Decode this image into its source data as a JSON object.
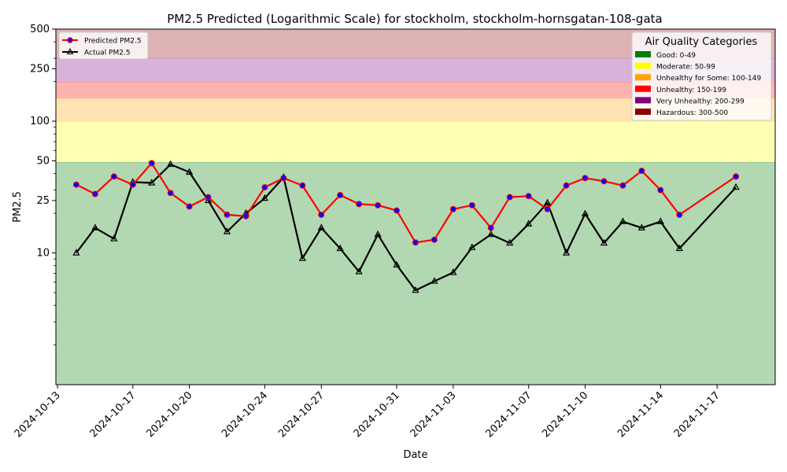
{
  "chart_data": {
    "type": "line",
    "title": "PM2.5 Predicted (Logarithmic Scale) for stockholm, stockholm-hornsgatan-108-gata",
    "xlabel": "Date",
    "ylabel": "PM2.5",
    "yscale": "log",
    "ylim": [
      1,
      500
    ],
    "xlim": [
      "2024-10-12T22:00",
      "2024-11-20T02:00"
    ],
    "x_ticks": [
      "2024-10-13",
      "2024-10-17",
      "2024-10-20",
      "2024-10-24",
      "2024-10-27",
      "2024-10-31",
      "2024-11-03",
      "2024-11-07",
      "2024-11-10",
      "2024-11-14",
      "2024-11-17"
    ],
    "y_ticks": [
      {
        "value": 10,
        "label": "10"
      },
      {
        "value": 25,
        "label": "25"
      },
      {
        "value": 50,
        "label": "50"
      },
      {
        "value": 100,
        "label": "100"
      },
      {
        "value": 250,
        "label": "250"
      },
      {
        "value": 500,
        "label": "500"
      }
    ],
    "y_minor_ticks": [
      2,
      3,
      4,
      5,
      6,
      7,
      8,
      9,
      20,
      30,
      40,
      60,
      70,
      80,
      90,
      200,
      300,
      400
    ],
    "categories_legend": {
      "title": "Air Quality Categories",
      "placement": "top-right",
      "items": [
        {
          "label": "Good: 0-49",
          "color": "#008000",
          "band": [
            1,
            49
          ],
          "band_color": "#b2d8b2"
        },
        {
          "label": "Moderate: 50-99",
          "color": "#ffff00",
          "band": [
            50,
            99
          ],
          "band_color": "#ffffb2"
        },
        {
          "label": "Unhealthy for Some: 100-149",
          "color": "#ffa500",
          "band": [
            100,
            149
          ],
          "band_color": "#ffe4b2"
        },
        {
          "label": "Unhealthy: 150-199",
          "color": "#ff0000",
          "band": [
            150,
            199
          ],
          "band_color": "#ffb2b2"
        },
        {
          "label": "Very Unhealthy: 200-299",
          "color": "#800080",
          "band": [
            200,
            299
          ],
          "band_color": "#d8b2d8"
        },
        {
          "label": "Hazardous: 300-500",
          "color": "#8b0000",
          "band": [
            300,
            500
          ],
          "band_color": "#dcb2b2"
        }
      ]
    },
    "series_legend_placement": "top-left",
    "series": [
      {
        "name": "Predicted PM2.5",
        "color": "#ff0000",
        "marker": "circle",
        "marker_color": "#0000ff",
        "points": [
          [
            "2024-10-14",
            33
          ],
          [
            "2024-10-15",
            28
          ],
          [
            "2024-10-16",
            38
          ],
          [
            "2024-10-17",
            33
          ],
          [
            "2024-10-18",
            48
          ],
          [
            "2024-10-19",
            28.5
          ],
          [
            "2024-10-20",
            22.5
          ],
          [
            "2024-10-21",
            26.5
          ],
          [
            "2024-10-22",
            19.5
          ],
          [
            "2024-10-23",
            19
          ],
          [
            "2024-10-24",
            31.5
          ],
          [
            "2024-10-25",
            37
          ],
          [
            "2024-10-26",
            32.5
          ],
          [
            "2024-10-27",
            19.5
          ],
          [
            "2024-10-28",
            27.5
          ],
          [
            "2024-10-29",
            23.5
          ],
          [
            "2024-10-30",
            23
          ],
          [
            "2024-10-31",
            21
          ],
          [
            "2024-11-01",
            12
          ],
          [
            "2024-11-02",
            12.6
          ],
          [
            "2024-11-03",
            21.5
          ],
          [
            "2024-11-04",
            23
          ],
          [
            "2024-11-05",
            15.5
          ],
          [
            "2024-11-06",
            26.5
          ],
          [
            "2024-11-07",
            27
          ],
          [
            "2024-11-08",
            21.5
          ],
          [
            "2024-11-09",
            32.5
          ],
          [
            "2024-11-10",
            37
          ],
          [
            "2024-11-11",
            35
          ],
          [
            "2024-11-12",
            32.5
          ],
          [
            "2024-11-13",
            42
          ],
          [
            "2024-11-14",
            30
          ],
          [
            "2024-11-15",
            19.5
          ],
          [
            "2024-11-18",
            38
          ]
        ]
      },
      {
        "name": "Actual PM2.5",
        "color": "#000000",
        "marker": "triangle",
        "marker_color": "#000000",
        "points": [
          [
            "2024-10-14",
            10
          ],
          [
            "2024-10-15",
            15.5
          ],
          [
            "2024-10-16",
            12.8
          ],
          [
            "2024-10-17",
            34.5
          ],
          [
            "2024-10-18",
            34
          ],
          [
            "2024-10-19",
            47
          ],
          [
            "2024-10-20",
            41
          ],
          [
            "2024-10-21",
            25
          ],
          [
            "2024-10-22",
            14.5
          ],
          [
            "2024-10-23",
            20
          ],
          [
            "2024-10-24",
            26
          ],
          [
            "2024-10-25",
            37.5
          ],
          [
            "2024-10-26",
            9.1
          ],
          [
            "2024-10-27",
            15.5
          ],
          [
            "2024-10-28",
            10.8
          ],
          [
            "2024-10-29",
            7.2
          ],
          [
            "2024-10-30",
            13.8
          ],
          [
            "2024-10-31",
            8.1
          ],
          [
            "2024-11-01",
            5.2
          ],
          [
            "2024-11-02",
            6.1
          ],
          [
            "2024-11-03",
            7.1
          ],
          [
            "2024-11-04",
            11
          ],
          [
            "2024-11-05",
            13.8
          ],
          [
            "2024-11-06",
            11.9
          ],
          [
            "2024-11-07",
            16.6
          ],
          [
            "2024-11-08",
            24
          ],
          [
            "2024-11-09",
            10
          ],
          [
            "2024-11-10",
            19.8
          ],
          [
            "2024-11-11",
            11.9
          ],
          [
            "2024-11-12",
            17.3
          ],
          [
            "2024-11-13",
            15.5
          ],
          [
            "2024-11-14",
            17.3
          ],
          [
            "2024-11-15",
            10.8
          ],
          [
            "2024-11-18",
            31.5
          ]
        ]
      }
    ]
  }
}
